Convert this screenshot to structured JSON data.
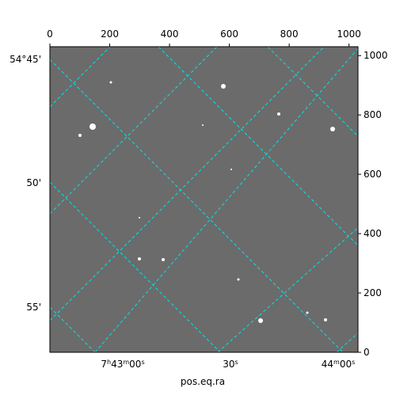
{
  "chart_data": {
    "type": "image",
    "xlabel": "pos.eq.ra",
    "xlim": [
      0,
      1030
    ],
    "ylim": [
      0,
      1030
    ],
    "xticks": [
      0,
      200,
      400,
      600,
      800,
      1000
    ],
    "yticks": [
      0,
      200,
      400,
      600,
      800,
      1000
    ],
    "dec_ticks": [
      "54°45'",
      "50'",
      "55'"
    ],
    "ra_ticks": [
      "7h43m00s",
      "30s",
      "44m00s"
    ],
    "grid_color": "#00e5e5"
  }
}
